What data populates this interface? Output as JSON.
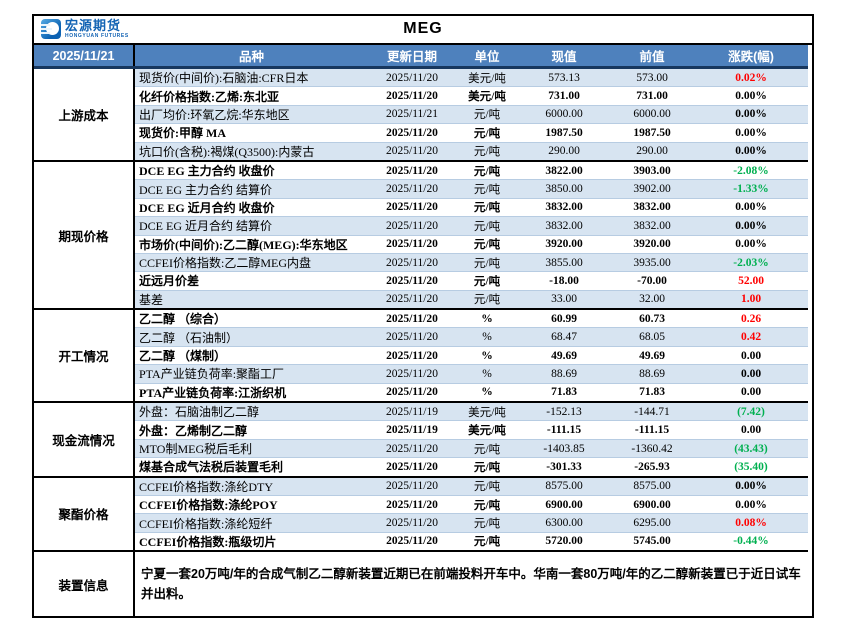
{
  "report": {
    "brand": {
      "name": "宏源期货",
      "sub": "HONGYUAN FUTURES"
    },
    "title": "MEG",
    "date": "2025/11/21",
    "columns": [
      "品种",
      "更新日期",
      "单位",
      "现值",
      "前值",
      "涨跌(幅)"
    ],
    "colors": {
      "header_bg": "#4E81BD",
      "row_alt_bg": "#D7E4F1",
      "up_red": "#FF0000",
      "down_green": "#00B050",
      "neutral": "#000000",
      "header_underline": "#17375E",
      "brand_blue": "#1464B4"
    },
    "sections": [
      {
        "label": "上游成本",
        "rows": [
          {
            "name": "现货价(中间价):石脑油:CFR日本",
            "date": "2025/11/20",
            "unit": "美元/吨",
            "current": "573.13",
            "previous": "573.00",
            "change": "0.02%",
            "trend": "up"
          },
          {
            "name": "化纤价格指数:乙烯:东北亚",
            "date": "2025/11/20",
            "unit": "美元/吨",
            "current": "731.00",
            "previous": "731.00",
            "change": "0.00%",
            "trend": "flat"
          },
          {
            "name": "出厂均价:环氧乙烷:华东地区",
            "date": "2025/11/21",
            "unit": "元/吨",
            "current": "6000.00",
            "previous": "6000.00",
            "change": "0.00%",
            "trend": "flat"
          },
          {
            "name": "现货价:甲醇 MA",
            "date": "2025/11/20",
            "unit": "元/吨",
            "current": "1987.50",
            "previous": "1987.50",
            "change": "0.00%",
            "trend": "flat"
          },
          {
            "name": "坑口价(含税):褐煤(Q3500):内蒙古",
            "date": "2025/11/20",
            "unit": "元/吨",
            "current": "290.00",
            "previous": "290.00",
            "change": "0.00%",
            "trend": "flat"
          }
        ]
      },
      {
        "label": "期现价格",
        "rows": [
          {
            "name": "DCE EG 主力合约 收盘价",
            "date": "2025/11/20",
            "unit": "元/吨",
            "current": "3822.00",
            "previous": "3903.00",
            "change": "-2.08%",
            "trend": "down"
          },
          {
            "name": "DCE EG 主力合约 结算价",
            "date": "2025/11/20",
            "unit": "元/吨",
            "current": "3850.00",
            "previous": "3902.00",
            "change": "-1.33%",
            "trend": "down"
          },
          {
            "name": "DCE EG 近月合约 收盘价",
            "date": "2025/11/20",
            "unit": "元/吨",
            "current": "3832.00",
            "previous": "3832.00",
            "change": "0.00%",
            "trend": "flat"
          },
          {
            "name": "DCE EG 近月合约 结算价",
            "date": "2025/11/20",
            "unit": "元/吨",
            "current": "3832.00",
            "previous": "3832.00",
            "change": "0.00%",
            "trend": "flat"
          },
          {
            "name": "市场价(中间价):乙二醇(MEG):华东地区",
            "date": "2025/11/20",
            "unit": "元/吨",
            "current": "3920.00",
            "previous": "3920.00",
            "change": "0.00%",
            "trend": "flat"
          },
          {
            "name": "CCFEI价格指数:乙二醇MEG内盘",
            "date": "2025/11/20",
            "unit": "元/吨",
            "current": "3855.00",
            "previous": "3935.00",
            "change": "-2.03%",
            "trend": "down"
          },
          {
            "name": "近远月价差",
            "date": "2025/11/20",
            "unit": "元/吨",
            "current": "-18.00",
            "previous": "-70.00",
            "change": "52.00",
            "trend": "up"
          },
          {
            "name": "基差",
            "date": "2025/11/20",
            "unit": "元/吨",
            "current": "33.00",
            "previous": "32.00",
            "change": "1.00",
            "trend": "up"
          }
        ]
      },
      {
        "label": "开工情况",
        "rows": [
          {
            "name": "乙二醇 （综合）",
            "date": "2025/11/20",
            "unit": "%",
            "current": "60.99",
            "previous": "60.73",
            "change": "0.26",
            "trend": "up"
          },
          {
            "name": "乙二醇 （石油制）",
            "date": "2025/11/20",
            "unit": "%",
            "current": "68.47",
            "previous": "68.05",
            "change": "0.42",
            "trend": "up"
          },
          {
            "name": "乙二醇 （煤制）",
            "date": "2025/11/20",
            "unit": "%",
            "current": "49.69",
            "previous": "49.69",
            "change": "0.00",
            "trend": "flat"
          },
          {
            "name": "PTA产业链负荷率:聚酯工厂",
            "date": "2025/11/20",
            "unit": "%",
            "current": "88.69",
            "previous": "88.69",
            "change": "0.00",
            "trend": "flat"
          },
          {
            "name": "PTA产业链负荷率:江浙织机",
            "date": "2025/11/20",
            "unit": "%",
            "current": "71.83",
            "previous": "71.83",
            "change": "0.00",
            "trend": "flat"
          }
        ]
      },
      {
        "label": "现金流情况",
        "rows": [
          {
            "name": "外盘：石脑油制乙二醇",
            "date": "2025/11/19",
            "unit": "美元/吨",
            "current": "-152.13",
            "previous": "-144.71",
            "change": "(7.42)",
            "trend": "down"
          },
          {
            "name": "外盘：乙烯制乙二醇",
            "date": "2025/11/19",
            "unit": "美元/吨",
            "current": "-111.15",
            "previous": "-111.15",
            "change": "0.00",
            "trend": "flat"
          },
          {
            "name": "MTO制MEG税后毛利",
            "date": "2025/11/20",
            "unit": "元/吨",
            "current": "-1403.85",
            "previous": "-1360.42",
            "change": "(43.43)",
            "trend": "down"
          },
          {
            "name": "煤基合成气法税后装置毛利",
            "date": "2025/11/20",
            "unit": "元/吨",
            "current": "-301.33",
            "previous": "-265.93",
            "change": "(35.40)",
            "trend": "down"
          }
        ]
      },
      {
        "label": "聚酯价格",
        "rows": [
          {
            "name": "CCFEI价格指数:涤纶DTY",
            "date": "2025/11/20",
            "unit": "元/吨",
            "current": "8575.00",
            "previous": "8575.00",
            "change": "0.00%",
            "trend": "flat"
          },
          {
            "name": "CCFEI价格指数:涤纶POY",
            "date": "2025/11/20",
            "unit": "元/吨",
            "current": "6900.00",
            "previous": "6900.00",
            "change": "0.00%",
            "trend": "flat"
          },
          {
            "name": "CCFEI价格指数:涤纶短纤",
            "date": "2025/11/20",
            "unit": "元/吨",
            "current": "6300.00",
            "previous": "6295.00",
            "change": "0.08%",
            "trend": "up"
          },
          {
            "name": "CCFEI价格指数:瓶级切片",
            "date": "2025/11/20",
            "unit": "元/吨",
            "current": "5720.00",
            "previous": "5745.00",
            "change": "-0.44%",
            "trend": "down"
          }
        ]
      }
    ],
    "note_section": {
      "label": "装置信息",
      "text": "宁夏一套20万吨/年的合成气制乙二醇新装置近期已在前端投料开车中。华南一套80万吨/年的乙二醇新装置已于近日试车并出料。"
    }
  }
}
